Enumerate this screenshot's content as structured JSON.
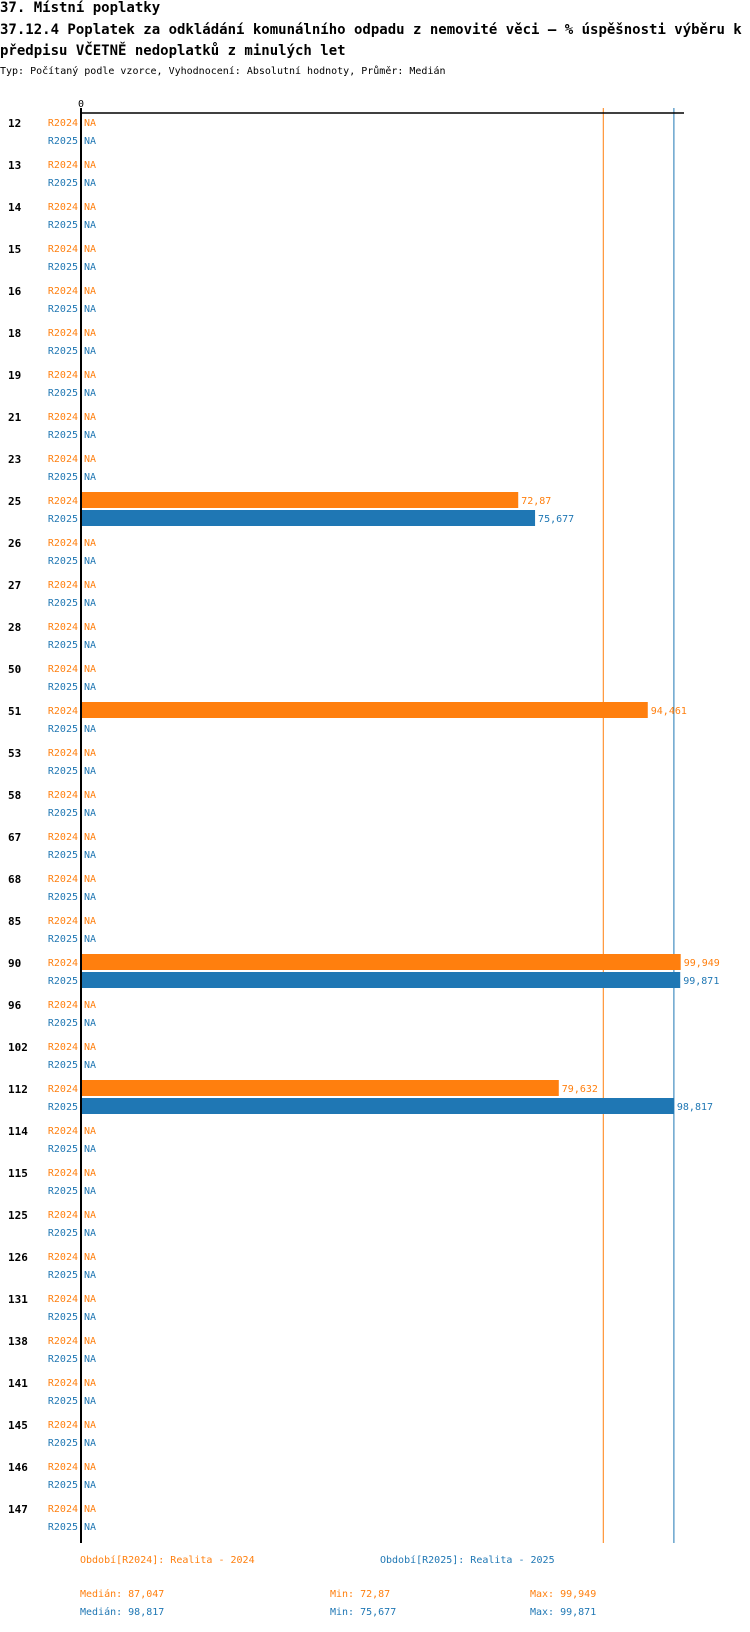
{
  "header": {
    "section": "37. Místní poplatky",
    "title": "37.12.4 Poplatek za odkládání komunálního odpadu z nemovité věci – % úspěšnosti výběru k předpisu VČETNĚ nedoplatků z minulých let",
    "subtitle": "Typ: Počítaný podle vzorce, Vyhodnocení: Absolutní hodnoty, Průměr: Medián"
  },
  "colors": {
    "r2024": "#ff7f0e",
    "r2025": "#1f77b4",
    "axis": "#000000"
  },
  "chart_data": {
    "type": "bar",
    "orientation": "horizontal",
    "x_origin_label": "0",
    "xlim": [
      0,
      100
    ],
    "na_label": "NA",
    "categories": [
      "12",
      "13",
      "14",
      "15",
      "16",
      "18",
      "19",
      "21",
      "23",
      "25",
      "26",
      "27",
      "28",
      "50",
      "51",
      "53",
      "58",
      "67",
      "68",
      "85",
      "90",
      "96",
      "102",
      "112",
      "114",
      "115",
      "125",
      "126",
      "131",
      "138",
      "141",
      "145",
      "146",
      "147"
    ],
    "series": [
      {
        "name": "R2024",
        "color": "#ff7f0e",
        "values": [
          null,
          null,
          null,
          null,
          null,
          null,
          null,
          null,
          null,
          72.87,
          null,
          null,
          null,
          null,
          94.461,
          null,
          null,
          null,
          null,
          null,
          99.949,
          null,
          null,
          79.632,
          null,
          null,
          null,
          null,
          null,
          null,
          null,
          null,
          null,
          null
        ],
        "labels": [
          "NA",
          "NA",
          "NA",
          "NA",
          "NA",
          "NA",
          "NA",
          "NA",
          "NA",
          "72,87",
          "NA",
          "NA",
          "NA",
          "NA",
          "94,461",
          "NA",
          "NA",
          "NA",
          "NA",
          "NA",
          "99,949",
          "NA",
          "NA",
          "79,632",
          "NA",
          "NA",
          "NA",
          "NA",
          "NA",
          "NA",
          "NA",
          "NA",
          "NA",
          "NA"
        ],
        "reference_line": 87.047
      },
      {
        "name": "R2025",
        "color": "#1f77b4",
        "values": [
          null,
          null,
          null,
          null,
          null,
          null,
          null,
          null,
          null,
          75.677,
          null,
          null,
          null,
          null,
          null,
          null,
          null,
          null,
          null,
          null,
          99.871,
          null,
          null,
          98.817,
          null,
          null,
          null,
          null,
          null,
          null,
          null,
          null,
          null,
          null
        ],
        "labels": [
          "NA",
          "NA",
          "NA",
          "NA",
          "NA",
          "NA",
          "NA",
          "NA",
          "NA",
          "75,677",
          "NA",
          "NA",
          "NA",
          "NA",
          "NA",
          "NA",
          "NA",
          "NA",
          "NA",
          "NA",
          "99,871",
          "NA",
          "NA",
          "98,817",
          "NA",
          "NA",
          "NA",
          "NA",
          "NA",
          "NA",
          "NA",
          "NA",
          "NA",
          "NA"
        ],
        "reference_line": 98.817
      }
    ]
  },
  "legend": {
    "r2024": "Období[R2024]: Realita - 2024",
    "r2025": "Období[R2025]: Realita - 2025"
  },
  "stats": {
    "r2024": {
      "median": "Medián: 87,047",
      "min": "Min: 72,87",
      "max": "Max: 99,949"
    },
    "r2025": {
      "median": "Medián: 98,817",
      "min": "Min: 75,677",
      "max": "Max: 99,871"
    }
  }
}
